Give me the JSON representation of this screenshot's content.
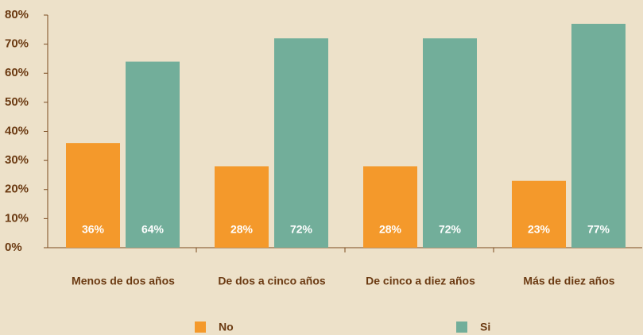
{
  "chart_data": {
    "type": "bar",
    "categories": [
      "Menos de dos años",
      "De dos a cinco años",
      "De cinco a diez años",
      "Más de diez años"
    ],
    "series": [
      {
        "name": "No",
        "color": "#f4992b",
        "values": [
          36,
          28,
          28,
          23
        ],
        "value_labels": [
          "36%",
          "28%",
          "28%",
          "23%"
        ]
      },
      {
        "name": "Si",
        "color": "#72ae9a",
        "values": [
          64,
          72,
          72,
          77
        ],
        "value_labels": [
          "64%",
          "72%",
          "72%",
          "77%"
        ]
      }
    ],
    "ylim": [
      0,
      80
    ],
    "yticks": [
      {
        "value": 0,
        "label": "0%"
      },
      {
        "value": 10,
        "label": "10%"
      },
      {
        "value": 20,
        "label": "20%"
      },
      {
        "value": 30,
        "label": "30%"
      },
      {
        "value": 40,
        "label": "40%"
      },
      {
        "value": 50,
        "label": "50%"
      },
      {
        "value": 60,
        "label": "60%"
      },
      {
        "value": 70,
        "label": "70%"
      },
      {
        "value": 80,
        "label": "80%"
      }
    ],
    "grid": false,
    "legend": "bottom"
  }
}
